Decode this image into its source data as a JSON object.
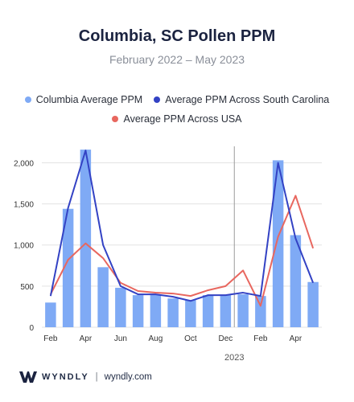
{
  "header": {
    "title": "Columbia, SC Pollen PPM",
    "subtitle": "February 2022 – May 2023"
  },
  "footer": {
    "brand": "WYNDLY",
    "separator": "|",
    "url": "wyndly.com"
  },
  "colors": {
    "bar": "#7faaf5",
    "sc_line": "#3342c4",
    "usa_line": "#e8675f",
    "grid": "#e3e3e3",
    "divider": "#9a9a9a",
    "tick_text": "#333333"
  },
  "chart_data": {
    "type": "bar",
    "x": [
      "2022-02",
      "2022-03",
      "2022-04",
      "2022-05",
      "2022-06",
      "2022-07",
      "2022-08",
      "2022-09",
      "2022-10",
      "2022-11",
      "2022-12",
      "2023-01",
      "2023-02",
      "2023-03",
      "2023-04",
      "2023-05"
    ],
    "xtick_labels": [
      "Feb",
      "",
      "Apr",
      "",
      "Jun",
      "",
      "Aug",
      "",
      "Oct",
      "",
      "Dec",
      "",
      "Feb",
      "",
      "Apr",
      ""
    ],
    "year_label": "2023",
    "year_divider_after_index": 10,
    "ylim": [
      0,
      2200
    ],
    "yticks": [
      0,
      500,
      1000,
      1500,
      2000
    ],
    "ytick_labels": [
      "0",
      "500",
      "1,000",
      "1,500",
      "2,000"
    ],
    "grid": true,
    "legend_position": "top",
    "series": [
      {
        "name": "Columbia Average PPM",
        "kind": "bar",
        "values": [
          300,
          1440,
          2160,
          730,
          480,
          390,
          400,
          350,
          330,
          390,
          390,
          400,
          380,
          2030,
          1120,
          550
        ]
      },
      {
        "name": "Average PPM Across South Carolina",
        "kind": "line",
        "values": [
          380,
          1450,
          2150,
          1000,
          500,
          400,
          400,
          370,
          320,
          390,
          390,
          420,
          380,
          2000,
          1080,
          540
        ]
      },
      {
        "name": "Average PPM Across USA",
        "kind": "line",
        "values": [
          400,
          820,
          1020,
          840,
          540,
          440,
          420,
          410,
          380,
          450,
          500,
          690,
          260,
          1100,
          1600,
          960
        ]
      }
    ]
  }
}
